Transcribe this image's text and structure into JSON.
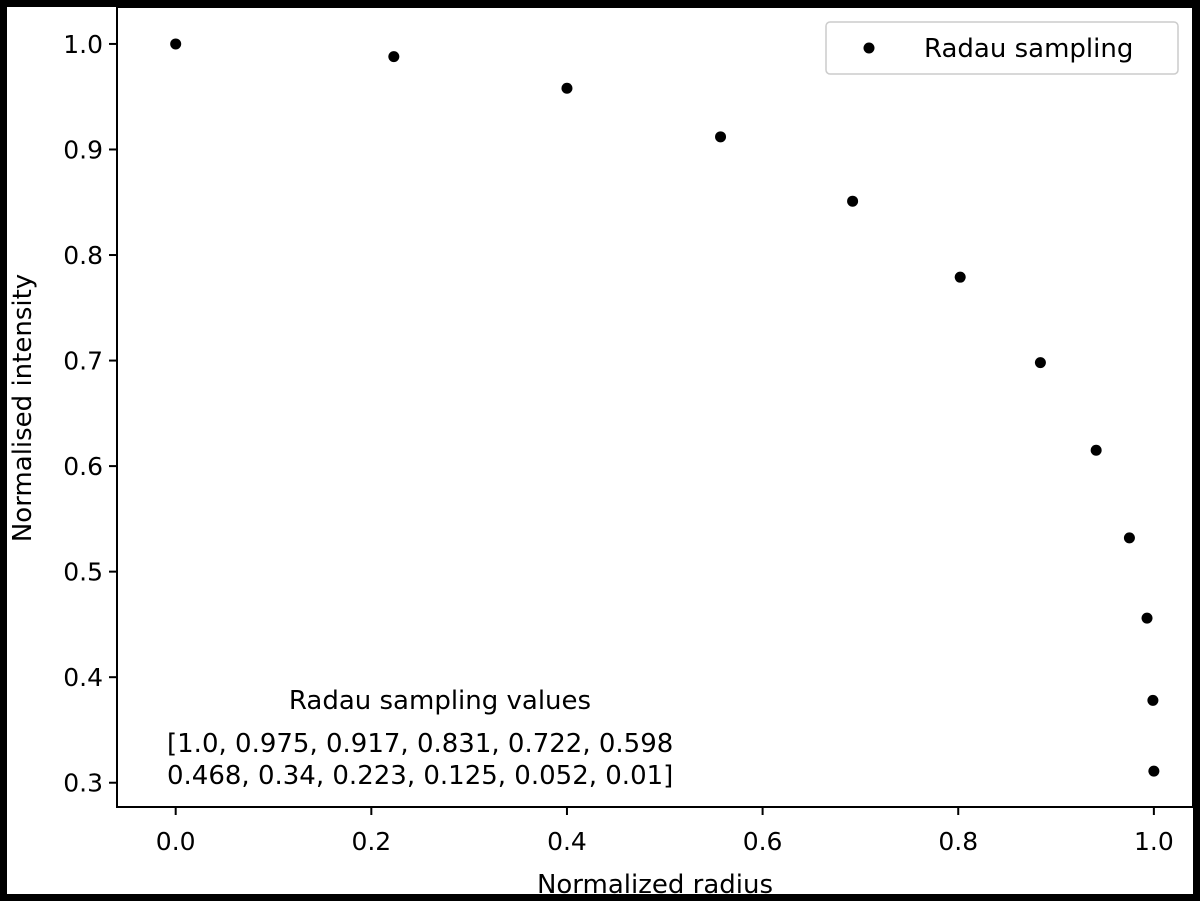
{
  "chart_data": {
    "type": "scatter",
    "title": "",
    "xlabel": "Normalized radius",
    "ylabel": "Normalised intensity",
    "xlim": [
      -0.06,
      1.04
    ],
    "ylim": [
      0.277,
      1.035
    ],
    "xticks": [
      0.0,
      0.2,
      0.4,
      0.6,
      0.8,
      1.0
    ],
    "xtick_labels": [
      "0.0",
      "0.2",
      "0.4",
      "0.6",
      "0.8",
      "1.0"
    ],
    "yticks": [
      0.3,
      0.4,
      0.5,
      0.6,
      0.7,
      0.8,
      0.9,
      1.0
    ],
    "ytick_labels": [
      "0.3",
      "0.4",
      "0.5",
      "0.6",
      "0.7",
      "0.8",
      "0.9",
      "1.0"
    ],
    "grid": false,
    "legend_position": "top-right",
    "series": [
      {
        "name": "Radau sampling",
        "color": "#000000",
        "x": [
          0.0,
          0.223,
          0.4,
          0.557,
          0.692,
          0.802,
          0.884,
          0.941,
          0.975,
          0.993,
          0.999,
          1.0
        ],
        "y": [
          1.0,
          0.988,
          0.958,
          0.912,
          0.851,
          0.779,
          0.698,
          0.615,
          0.532,
          0.456,
          0.378,
          0.311
        ]
      }
    ],
    "annotations": [
      {
        "title": "Radau sampling values",
        "line1": "[1.0, 0.975, 0.917, 0.831, 0.722, 0.598",
        "line2": "0.468, 0.34, 0.223, 0.125, 0.052, 0.01]"
      }
    ]
  }
}
